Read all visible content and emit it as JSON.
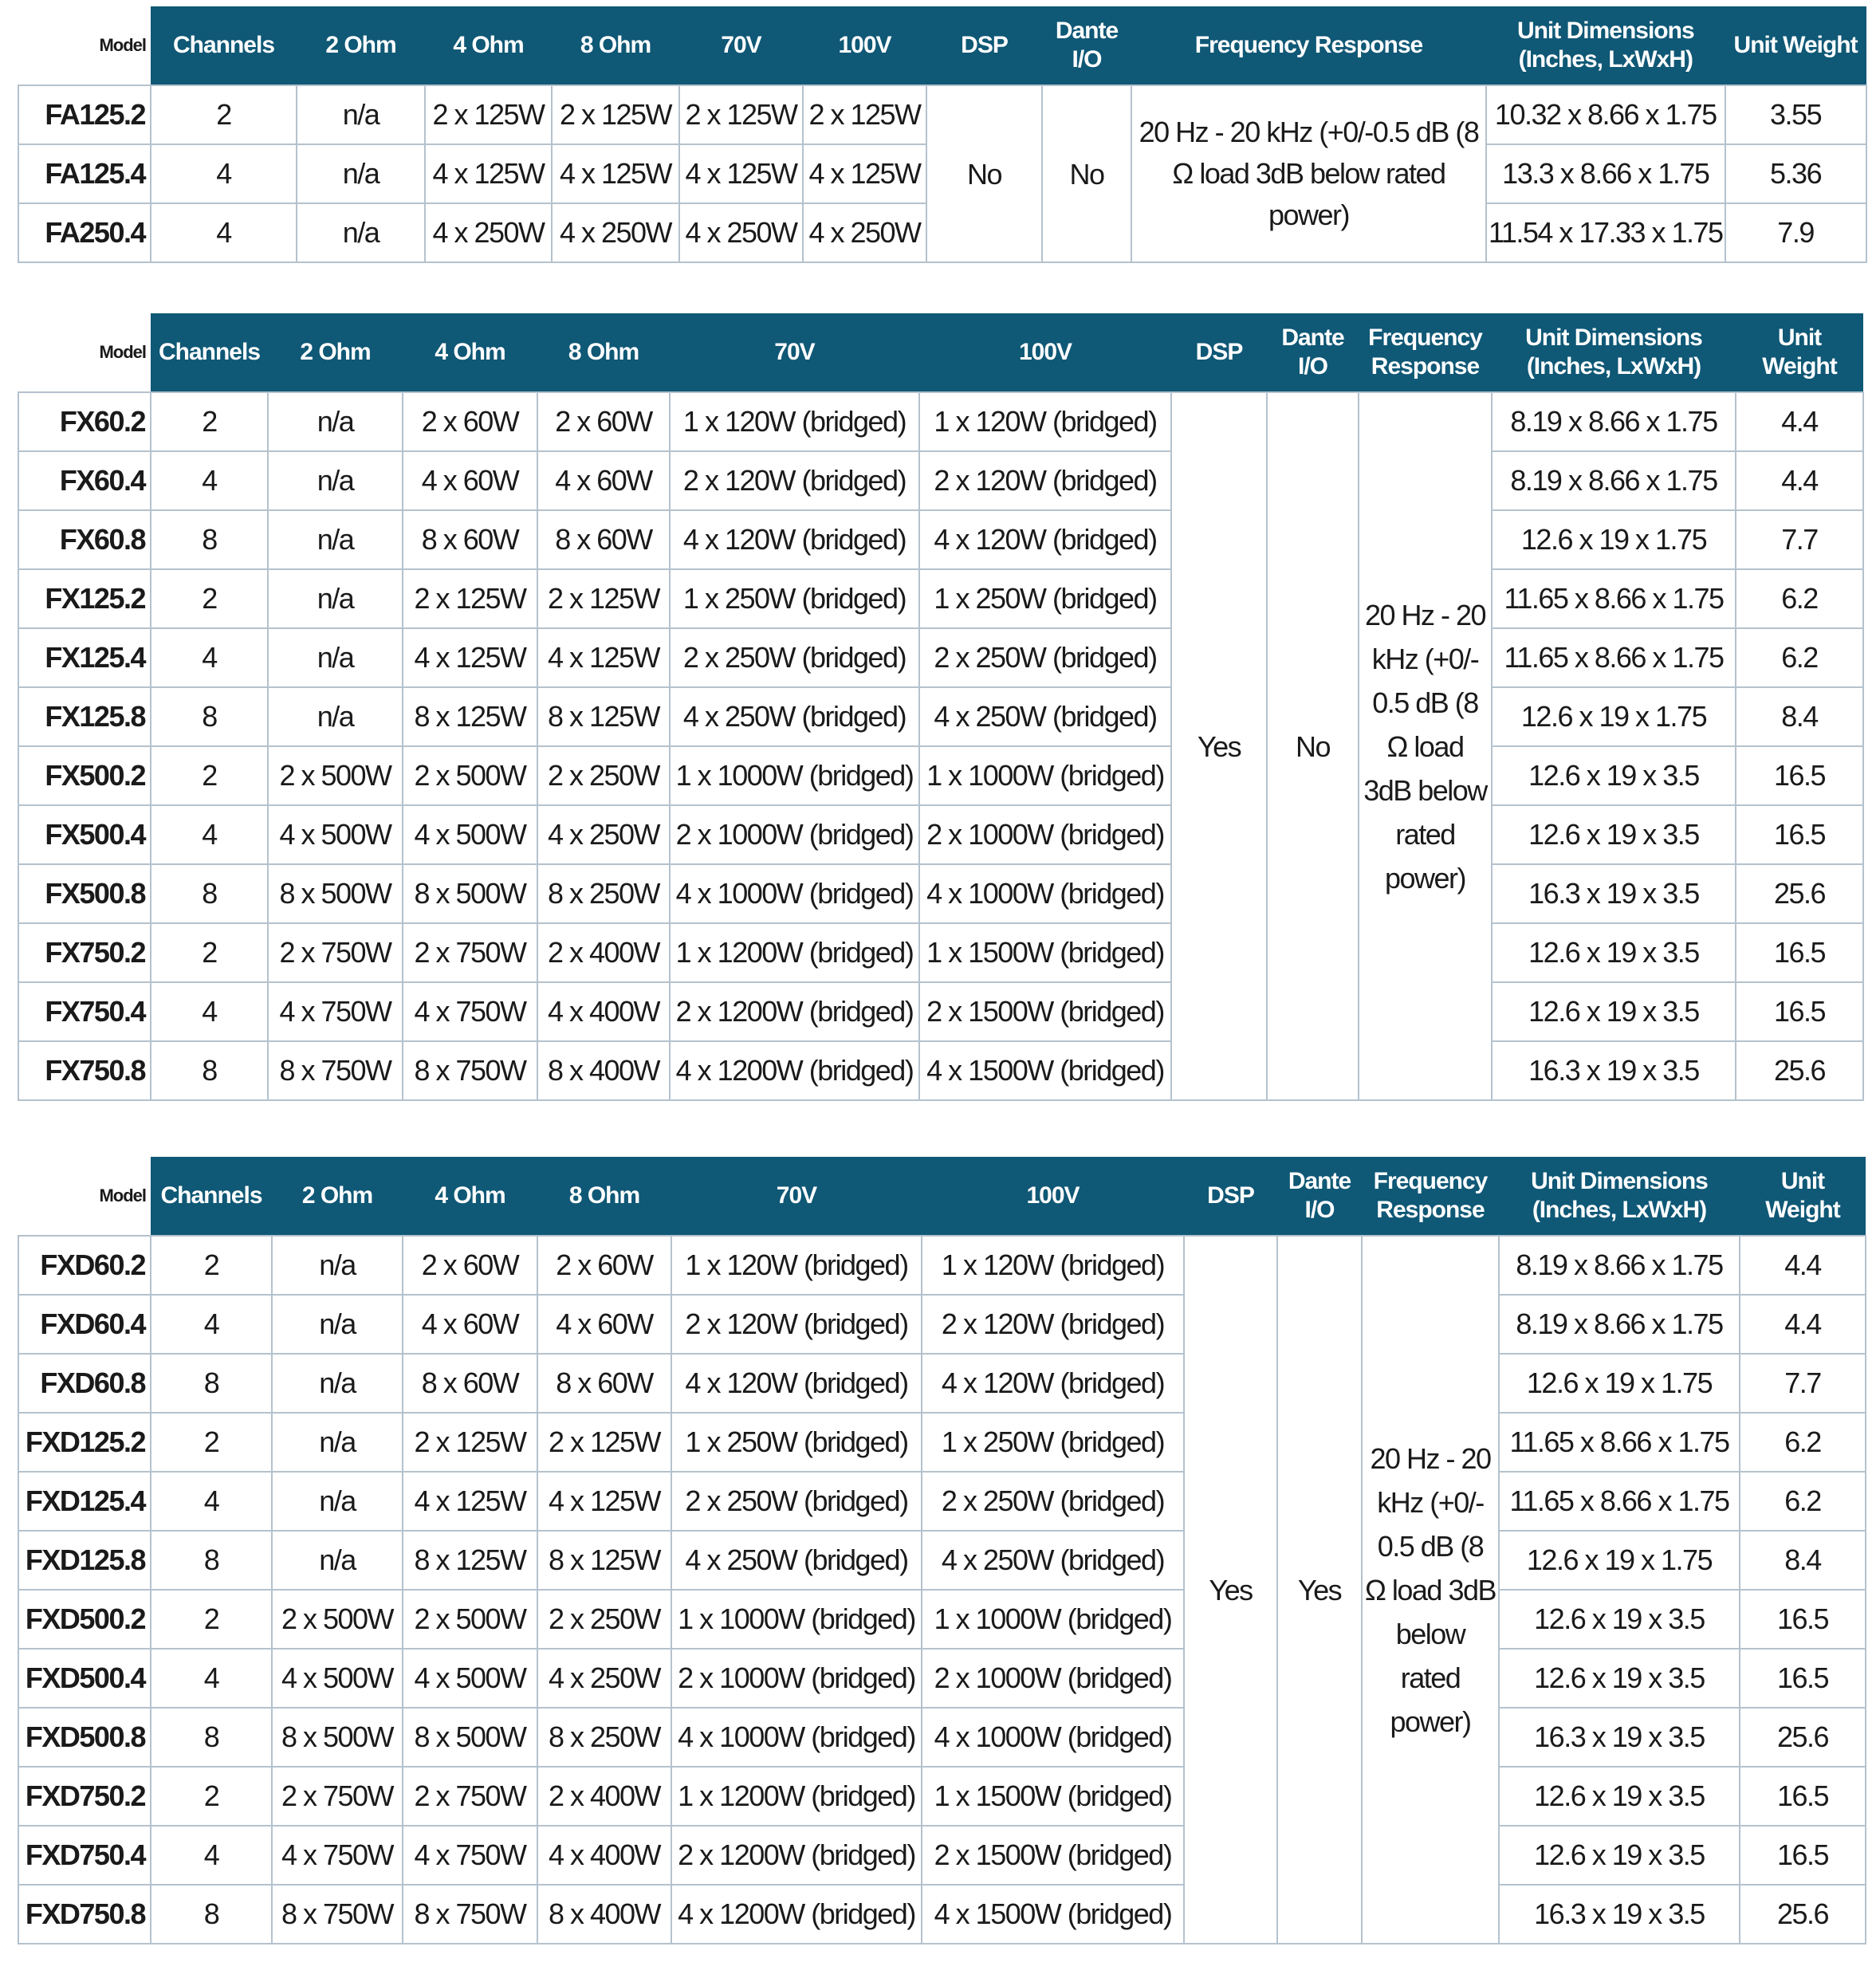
{
  "tables": [
    {
      "header": [
        "Model",
        "Channels",
        "2 Ohm",
        "4 Ohm",
        "8 Ohm",
        "70V",
        "100V",
        "DSP",
        "Dante I/O",
        "Frequency Response",
        "Unit Dimensions (Inches, LxWxH)",
        "Unit Weight"
      ],
      "dsp": "No",
      "dante": "No",
      "frequency_response": "20 Hz - 20 kHz (+0/-0.5 dB (8 Ω load 3dB below rated power)",
      "rows": [
        [
          "FA125.2",
          "2",
          "n/a",
          "2 x 125W",
          "2 x 125W",
          "2 x 125W",
          "2 x 125W",
          "10.32 x 8.66 x 1.75",
          "3.55"
        ],
        [
          "FA125.4",
          "4",
          "n/a",
          "4 x 125W",
          "4 x 125W",
          "4 x 125W",
          "4 x 125W",
          "13.3 x 8.66 x 1.75",
          "5.36"
        ],
        [
          "FA250.4",
          "4",
          "n/a",
          "4 x 250W",
          "4 x 250W",
          "4 x 250W",
          "4 x 250W",
          "11.54 x 17.33 x 1.75",
          "7.9"
        ]
      ]
    },
    {
      "header": [
        "Model",
        "Channels",
        "2 Ohm",
        "4 Ohm",
        "8 Ohm",
        "70V",
        "100V",
        "DSP",
        "Dante I/O",
        "Frequency Response",
        "Unit Dimensions (Inches, LxWxH)",
        "Unit Weight"
      ],
      "dsp": "Yes",
      "dante": "No",
      "frequency_response": "20 Hz - 20 kHz (+0/- 0.5 dB (8 Ω load 3dB below rated power)",
      "rows": [
        [
          "FX60.2",
          "2",
          "n/a",
          "2 x 60W",
          "2 x 60W",
          "1 x 120W (bridged)",
          "1 x 120W (bridged)",
          "8.19 x 8.66 x 1.75",
          "4.4"
        ],
        [
          "FX60.4",
          "4",
          "n/a",
          "4 x 60W",
          "4 x 60W",
          "2 x 120W (bridged)",
          "2 x 120W (bridged)",
          "8.19 x 8.66 x 1.75",
          "4.4"
        ],
        [
          "FX60.8",
          "8",
          "n/a",
          "8 x 60W",
          "8 x 60W",
          "4 x 120W (bridged)",
          "4 x 120W (bridged)",
          "12.6 x 19 x 1.75",
          "7.7"
        ],
        [
          "FX125.2",
          "2",
          "n/a",
          "2 x 125W",
          "2 x 125W",
          "1 x 250W (bridged)",
          "1 x 250W (bridged)",
          "11.65 x 8.66 x 1.75",
          "6.2"
        ],
        [
          "FX125.4",
          "4",
          "n/a",
          "4 x 125W",
          "4 x 125W",
          "2 x 250W (bridged)",
          "2 x 250W (bridged)",
          "11.65 x 8.66 x 1.75",
          "6.2"
        ],
        [
          "FX125.8",
          "8",
          "n/a",
          "8 x 125W",
          "8 x 125W",
          "4 x 250W (bridged)",
          "4 x 250W (bridged)",
          "12.6 x 19 x 1.75",
          "8.4"
        ],
        [
          "FX500.2",
          "2",
          "2 x 500W",
          "2 x 500W",
          "2 x 250W",
          "1 x 1000W (bridged)",
          "1 x 1000W (bridged)",
          "12.6 x 19 x 3.5",
          "16.5"
        ],
        [
          "FX500.4",
          "4",
          "4 x 500W",
          "4 x 500W",
          "4 x 250W",
          "2 x 1000W (bridged)",
          "2 x 1000W (bridged)",
          "12.6 x 19 x 3.5",
          "16.5"
        ],
        [
          "FX500.8",
          "8",
          "8 x 500W",
          "8 x 500W",
          "8 x 250W",
          "4 x 1000W (bridged)",
          "4 x 1000W (bridged)",
          "16.3 x 19 x 3.5",
          "25.6"
        ],
        [
          "FX750.2",
          "2",
          "2 x 750W",
          "2 x 750W",
          "2 x 400W",
          "1 x 1200W (bridged)",
          "1 x 1500W (bridged)",
          "12.6 x 19 x 3.5",
          "16.5"
        ],
        [
          "FX750.4",
          "4",
          "4 x 750W",
          "4 x 750W",
          "4 x 400W",
          "2 x 1200W (bridged)",
          "2 x 1500W (bridged)",
          "12.6 x 19 x 3.5",
          "16.5"
        ],
        [
          "FX750.8",
          "8",
          "8 x 750W",
          "8 x 750W",
          "8 x 400W",
          "4 x 1200W (bridged)",
          "4 x 1500W (bridged)",
          "16.3 x 19 x 3.5",
          "25.6"
        ]
      ]
    },
    {
      "header": [
        "Model",
        "Channels",
        "2 Ohm",
        "4 Ohm",
        "8 Ohm",
        "70V",
        "100V",
        "DSP",
        "Dante I/O",
        "Frequency Response",
        "Unit Dimensions (Inches, LxWxH)",
        "Unit Weight"
      ],
      "dsp": "Yes",
      "dante": "Yes",
      "frequency_response": "20 Hz - 20 kHz (+0/- 0.5 dB (8 Ω load 3dB below rated power)",
      "rows": [
        [
          "FXD60.2",
          "2",
          "n/a",
          "2 x 60W",
          "2 x 60W",
          "1 x 120W (bridged)",
          "1 x 120W (bridged)",
          "8.19 x 8.66 x 1.75",
          "4.4"
        ],
        [
          "FXD60.4",
          "4",
          "n/a",
          "4 x 60W",
          "4 x 60W",
          "2 x 120W (bridged)",
          "2 x 120W (bridged)",
          "8.19 x 8.66 x 1.75",
          "4.4"
        ],
        [
          "FXD60.8",
          "8",
          "n/a",
          "8 x 60W",
          "8 x 60W",
          "4 x 120W (bridged)",
          "4 x 120W (bridged)",
          "12.6 x 19 x 1.75",
          "7.7"
        ],
        [
          "FXD125.2",
          "2",
          "n/a",
          "2 x 125W",
          "2 x 125W",
          "1 x 250W (bridged)",
          "1 x 250W (bridged)",
          "11.65 x 8.66 x 1.75",
          "6.2"
        ],
        [
          "FXD125.4",
          "4",
          "n/a",
          "4 x 125W",
          "4 x 125W",
          "2 x 250W (bridged)",
          "2 x 250W (bridged)",
          "11.65 x 8.66 x 1.75",
          "6.2"
        ],
        [
          "FXD125.8",
          "8",
          "n/a",
          "8 x 125W",
          "8 x 125W",
          "4 x 250W (bridged)",
          "4 x 250W (bridged)",
          "12.6 x 19 x 1.75",
          "8.4"
        ],
        [
          "FXD500.2",
          "2",
          "2 x 500W",
          "2 x 500W",
          "2 x 250W",
          "1 x 1000W (bridged)",
          "1 x 1000W (bridged)",
          "12.6 x 19 x 3.5",
          "16.5"
        ],
        [
          "FXD500.4",
          "4",
          "4 x 500W",
          "4 x 500W",
          "4 x 250W",
          "2 x 1000W (bridged)",
          "2 x 1000W (bridged)",
          "12.6 x 19 x 3.5",
          "16.5"
        ],
        [
          "FXD500.8",
          "8",
          "8 x 500W",
          "8 x 500W",
          "8 x 250W",
          "4 x 1000W (bridged)",
          "4 x 1000W (bridged)",
          "16.3 x 19 x 3.5",
          "25.6"
        ],
        [
          "FXD750.2",
          "2",
          "2 x 750W",
          "2 x 750W",
          "2 x 400W",
          "1 x 1200W (bridged)",
          "1 x 1500W (bridged)",
          "12.6 x 19 x 3.5",
          "16.5"
        ],
        [
          "FXD750.4",
          "4",
          "4 x 750W",
          "4 x 750W",
          "4 x 400W",
          "2 x 1200W (bridged)",
          "2 x 1500W (bridged)",
          "12.6 x 19 x 3.5",
          "16.5"
        ],
        [
          "FXD750.8",
          "8",
          "8 x 750W",
          "8 x 750W",
          "8 x 400W",
          "4 x 1200W (bridged)",
          "4 x 1500W (bridged)",
          "16.3 x 19 x 3.5",
          "25.6"
        ]
      ]
    }
  ]
}
